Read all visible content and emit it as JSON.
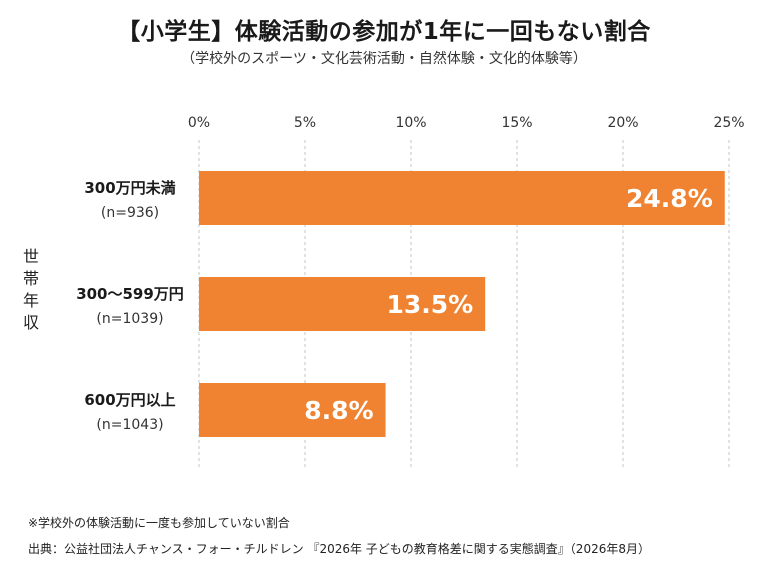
{
  "chart_data": {
    "type": "bar",
    "orientation": "horizontal",
    "title": "【小学生】体験活動の参加が1年に一回もない割合",
    "subtitle": "（学校外のスポーツ・文化芸術活動・自然体験・文化的体験等）",
    "ylabel": "世帯年収",
    "xlim": [
      0,
      25
    ],
    "x_ticks": [
      0,
      5,
      10,
      15,
      20,
      25
    ],
    "x_tick_labels": [
      "0%",
      "5%",
      "10%",
      "15%",
      "20%",
      "25%"
    ],
    "grid": true,
    "categories": [
      {
        "label": "300万円未満",
        "n": "(n=936)"
      },
      {
        "label": "300〜599万円",
        "n": "(n=1039)"
      },
      {
        "label": "600万円以上",
        "n": "(n=1043)"
      }
    ],
    "values": [
      24.8,
      13.5,
      8.8
    ],
    "value_labels": [
      "24.8%",
      "13.5%",
      "8.8%"
    ],
    "bar_color": "#f08331",
    "label_color": "#ffffff",
    "grid_color": "#d9d9d9"
  },
  "footnote": "※学校外の体験活動に一度も参加していない割合",
  "source": "出典：公益社団法人チャンス・フォー・チルドレン 『2026年 子どもの教育格差に関する実態調査』（2026年8月）"
}
